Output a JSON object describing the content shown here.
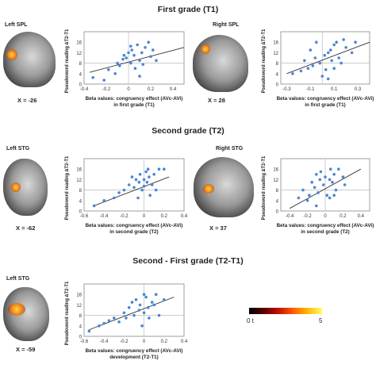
{
  "sections": [
    {
      "title": "First grade (T1)"
    },
    {
      "title": "Second grade (T2)"
    },
    {
      "title": "Second - First grade (T2-T1)"
    }
  ],
  "brains": [
    {
      "region": "Left SPL",
      "x_label": "X = -26"
    },
    {
      "region": "Right SPL",
      "x_label": "X = 28"
    },
    {
      "region": "Left STG",
      "x_label": "X = -62"
    },
    {
      "region": "Right STG",
      "x_label": "X = 37"
    },
    {
      "region": "Left STG",
      "x_label": "X = -59"
    }
  ],
  "colorbar": {
    "min_label": "0 t",
    "max_label": "5"
  },
  "chart_data": [
    {
      "type": "scatter",
      "xlabel": "Beta values: congruency effect (AVc-AVi)",
      "xlabel2": "in first grade (T1)",
      "ylabel": "Pseudoword reading ∆T2-T1",
      "xticks": [
        -0.4,
        -0.2,
        0,
        0.2,
        0.4
      ],
      "yticks": [
        0,
        4,
        8,
        12,
        16
      ],
      "xlim": [
        -0.4,
        0.5
      ],
      "ylim": [
        0,
        20
      ],
      "points": [
        [
          -0.32,
          2.5
        ],
        [
          -0.22,
          1.5
        ],
        [
          -0.18,
          5.5
        ],
        [
          -0.12,
          4
        ],
        [
          -0.1,
          8
        ],
        [
          -0.08,
          7
        ],
        [
          -0.05,
          9.5
        ],
        [
          -0.02,
          10
        ],
        [
          0,
          12
        ],
        [
          0.02,
          8
        ],
        [
          0.03,
          13
        ],
        [
          0.05,
          11
        ],
        [
          0.06,
          6
        ],
        [
          0.08,
          15
        ],
        [
          0.1,
          9
        ],
        [
          0.12,
          12
        ],
        [
          0.13,
          7.5
        ],
        [
          0.15,
          14
        ],
        [
          0.18,
          16
        ],
        [
          0.2,
          10.5
        ],
        [
          0.22,
          13
        ],
        [
          0.02,
          14.5
        ],
        [
          -0.04,
          11
        ],
        [
          0.25,
          9
        ],
        [
          0.1,
          3
        ]
      ],
      "fit": [
        [
          -0.35,
          4.5
        ],
        [
          0.5,
          14
        ]
      ]
    },
    {
      "type": "scatter",
      "xlabel": "Beta values: congruency effect (AVc-AVi)",
      "xlabel2": "in first grade (T1)",
      "ylabel": "Pseudoword reading ∆T2-T1",
      "xticks": [
        -0.3,
        -0.1,
        0.1,
        0.3
      ],
      "yticks": [
        0,
        4,
        8,
        12,
        16
      ],
      "xlim": [
        -0.35,
        0.4
      ],
      "ylim": [
        0,
        20
      ],
      "points": [
        [
          -0.25,
          4
        ],
        [
          -0.18,
          5
        ],
        [
          -0.12,
          6
        ],
        [
          -0.1,
          13
        ],
        [
          -0.08,
          7
        ],
        [
          -0.06,
          10
        ],
        [
          -0.05,
          16
        ],
        [
          -0.02,
          8
        ],
        [
          0,
          3
        ],
        [
          0.02,
          11
        ],
        [
          0.03,
          5.5
        ],
        [
          0.05,
          12
        ],
        [
          0.07,
          13
        ],
        [
          0.08,
          9
        ],
        [
          0.1,
          15
        ],
        [
          0.1,
          6
        ],
        [
          0.12,
          16
        ],
        [
          0.14,
          10
        ],
        [
          0.16,
          8
        ],
        [
          0.18,
          17
        ],
        [
          0.2,
          14
        ],
        [
          0.25,
          12
        ],
        [
          0.28,
          16
        ],
        [
          -0.15,
          9
        ],
        [
          0.05,
          2
        ]
      ],
      "fit": [
        [
          -0.3,
          4
        ],
        [
          0.4,
          16
        ]
      ]
    },
    {
      "type": "scatter",
      "xlabel": "Beta values: congruency effect (AVc-AVi)",
      "xlabel2": "in second grade (T2)",
      "ylabel": "Pseudoword reading ∆T2-T1",
      "xticks": [
        -0.6,
        -0.4,
        -0.2,
        0,
        0.2,
        0.4
      ],
      "yticks": [
        0,
        4,
        8,
        12,
        16
      ],
      "xlim": [
        -0.6,
        0.4
      ],
      "ylim": [
        0,
        20
      ],
      "points": [
        [
          -0.5,
          2
        ],
        [
          -0.4,
          4
        ],
        [
          -0.3,
          5
        ],
        [
          -0.25,
          7
        ],
        [
          -0.15,
          10
        ],
        [
          -0.12,
          13
        ],
        [
          -0.1,
          9
        ],
        [
          -0.08,
          12
        ],
        [
          -0.05,
          11
        ],
        [
          -0.04,
          14
        ],
        [
          -0.02,
          8
        ],
        [
          0,
          12
        ],
        [
          0,
          9.5
        ],
        [
          0.02,
          15
        ],
        [
          0.03,
          11
        ],
        [
          0.05,
          13
        ],
        [
          0.06,
          6
        ],
        [
          0.08,
          10
        ],
        [
          0.1,
          14
        ],
        [
          0.12,
          8
        ],
        [
          0.15,
          16
        ],
        [
          0.2,
          16
        ],
        [
          -0.2,
          8
        ],
        [
          -0.06,
          5
        ],
        [
          0.04,
          16
        ]
      ],
      "fit": [
        [
          -0.5,
          2
        ],
        [
          0.25,
          13
        ]
      ]
    },
    {
      "type": "scatter",
      "xlabel": "Beta values: congruency effect (AVc-AVi)",
      "xlabel2": "in second grade (T2)",
      "ylabel": "Pseudoword reading ∆T2-T1",
      "xticks": [
        -0.4,
        -0.2,
        0,
        0.2,
        0.4
      ],
      "yticks": [
        0,
        4,
        8,
        12,
        16
      ],
      "xlim": [
        -0.5,
        0.5
      ],
      "ylim": [
        0,
        20
      ],
      "points": [
        [
          -0.3,
          5
        ],
        [
          -0.25,
          8
        ],
        [
          -0.2,
          4
        ],
        [
          -0.18,
          6
        ],
        [
          -0.15,
          11
        ],
        [
          -0.12,
          9
        ],
        [
          -0.1,
          14
        ],
        [
          -0.08,
          7
        ],
        [
          -0.06,
          12
        ],
        [
          -0.05,
          15
        ],
        [
          -0.02,
          10
        ],
        [
          0,
          13
        ],
        [
          0.02,
          6
        ],
        [
          0.05,
          12
        ],
        [
          0.06,
          16
        ],
        [
          0.08,
          11
        ],
        [
          0.1,
          14
        ],
        [
          0.12,
          8
        ],
        [
          0.15,
          16
        ],
        [
          0.2,
          13
        ],
        [
          0.22,
          10
        ],
        [
          0.05,
          5
        ],
        [
          -0.1,
          2
        ],
        [
          0.1,
          6
        ]
      ],
      "fit": [
        [
          -0.4,
          1
        ],
        [
          0.4,
          16
        ]
      ]
    },
    {
      "type": "scatter",
      "xlabel": "Beta values: congruency effect (AVc-AVi)",
      "xlabel2": "development (T2-T1)",
      "ylabel": "Pseudoword reading ∆T2-T1",
      "xticks": [
        -0.6,
        -0.4,
        -0.2,
        0,
        0.2,
        0.4
      ],
      "yticks": [
        0,
        4,
        8,
        12,
        16
      ],
      "xlim": [
        -0.6,
        0.4
      ],
      "ylim": [
        0,
        20
      ],
      "points": [
        [
          -0.55,
          2
        ],
        [
          -0.45,
          4
        ],
        [
          -0.4,
          5
        ],
        [
          -0.35,
          6
        ],
        [
          -0.3,
          7
        ],
        [
          -0.25,
          5.5
        ],
        [
          -0.2,
          9
        ],
        [
          -0.18,
          7
        ],
        [
          -0.15,
          11
        ],
        [
          -0.12,
          13
        ],
        [
          -0.1,
          8
        ],
        [
          -0.08,
          14
        ],
        [
          -0.05,
          10
        ],
        [
          -0.04,
          12
        ],
        [
          0,
          9
        ],
        [
          0,
          16
        ],
        [
          0.02,
          15
        ],
        [
          0.04,
          11
        ],
        [
          0.05,
          7
        ],
        [
          0.08,
          13
        ],
        [
          0.1,
          12
        ],
        [
          0.12,
          16
        ],
        [
          0.15,
          8
        ],
        [
          0.2,
          14
        ],
        [
          -0.02,
          4
        ]
      ],
      "fit": [
        [
          -0.55,
          2.5
        ],
        [
          0.3,
          15
        ]
      ]
    }
  ]
}
